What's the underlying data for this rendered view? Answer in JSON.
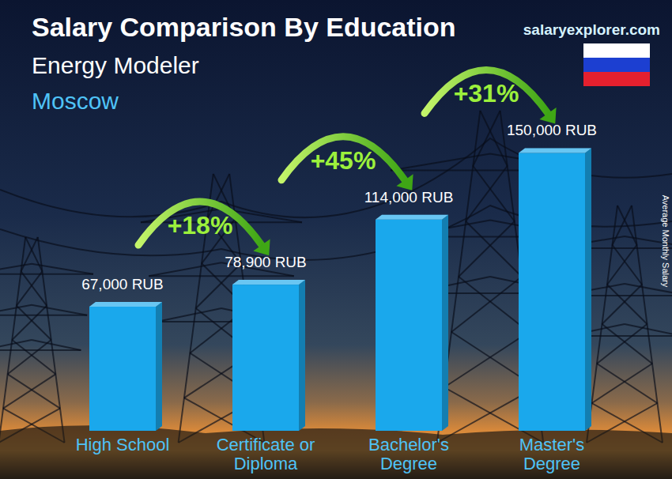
{
  "chart_data": {
    "type": "bar",
    "title": "Salary Comparison By Education",
    "subtitle": "Energy Modeler",
    "location": "Moscow",
    "source": "salaryexplorer.com",
    "ylabel": "Average Monthly Salary",
    "categories": [
      "High School",
      "Certificate or Diploma",
      "Bachelor's Degree",
      "Master's Degree"
    ],
    "values": [
      67000,
      78900,
      114000,
      150000
    ],
    "value_labels": [
      "67,000 RUB",
      "78,900 RUB",
      "114,000 RUB",
      "150,000 RUB"
    ],
    "annotations": [
      "+18%",
      "+45%",
      "+31%"
    ],
    "color": "#1aa8ec",
    "ylim": [
      0,
      160000
    ],
    "data_labels": true,
    "tick_labels": false,
    "grid": false
  }
}
